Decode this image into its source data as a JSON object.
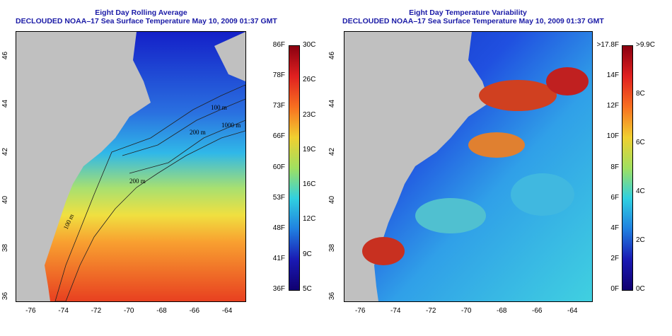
{
  "left_panel": {
    "title_line1": "Eight Day Rolling Average",
    "title_line2": "DECLOUDED NOAA–17 Sea Surface Temperature May 10, 2009 01:37 GMT",
    "x_ticks": [
      "-76",
      "-74",
      "-72",
      "-70",
      "-68",
      "-66",
      "-64"
    ],
    "y_ticks": [
      "36",
      "38",
      "40",
      "42",
      "44",
      "46"
    ],
    "contour_labels": [
      "100 m",
      "200 m",
      "1000 m",
      "200 m",
      "100 m"
    ],
    "colorbar_f": [
      "86F",
      "78F",
      "73F",
      "66F",
      "60F",
      "53F",
      "48F",
      "41F",
      "36F"
    ],
    "colorbar_c": [
      "30C",
      "26C",
      "23C",
      "19C",
      "16C",
      "12C",
      "9C",
      "5C"
    ],
    "colors": {
      "low": "#1a1ab4",
      "mid": "#f0e040",
      "high": "#b41a1a",
      "land": "#c0c0c0"
    }
  },
  "right_panel": {
    "title_line1": "Eight Day Temperature Variability",
    "title_line2": "DECLOUDED NOAA–17 Sea Surface Temperature May 10, 2009 01:37 GMT",
    "x_ticks": [
      "-76",
      "-74",
      "-72",
      "-70",
      "-68",
      "-66",
      "-64"
    ],
    "y_ticks": [
      "36",
      "38",
      "40",
      "42",
      "44",
      "46"
    ],
    "colorbar_f": [
      ">17.8F",
      "14F",
      "12F",
      "10F",
      "8F",
      "6F",
      "4F",
      "2F",
      "0F"
    ],
    "colorbar_c": [
      ">9.9C",
      "8C",
      "6C",
      "4C",
      "2C",
      "0C"
    ],
    "colors": {
      "low": "#1a1ab4",
      "mid": "#40e0e0",
      "high": "#b41a1a",
      "land": "#c0c0c0"
    }
  }
}
